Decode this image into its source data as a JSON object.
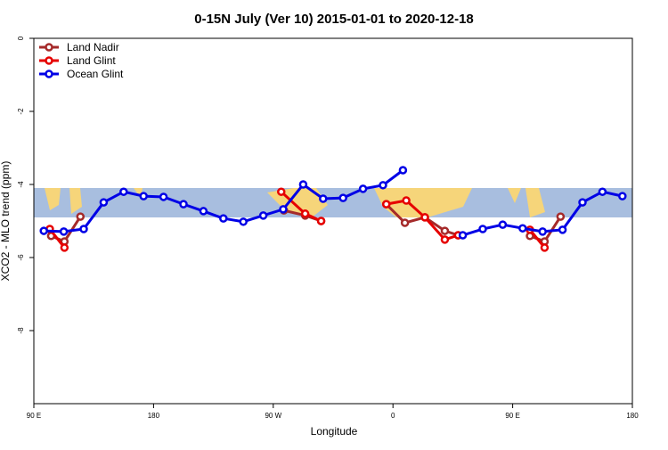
{
  "chart_data": {
    "type": "line",
    "title": "0-15N July (Ver 10)   2015-01-01 to 2020-12-18",
    "xlabel": "Longitude",
    "ylabel": "XCO2 - MLO trend (ppm)",
    "xlim": [
      90,
      540
    ],
    "ylim": [
      -10,
      0
    ],
    "xticks": [
      {
        "value": 90,
        "label": "90 E"
      },
      180,
      {
        "value": 270,
        "label": "90 W"
      },
      {
        "value": 360,
        "label": "0"
      },
      {
        "value": 450,
        "label": "90 E"
      },
      {
        "value": 540,
        "label": "180"
      }
    ],
    "yticks": [
      0,
      -2,
      -4,
      -6,
      -8
    ],
    "legend": "top-left",
    "series": [
      {
        "name": "Land Nadir",
        "color": "#a52a2a",
        "x": [
          103,
          113,
          125,
          null,
          278,
          294,
          306,
          null,
          355,
          369,
          384,
          399,
          409,
          null,
          463,
          474,
          486
        ],
        "values": [
          -5.41,
          -5.56,
          -4.88,
          null,
          -4.71,
          -4.85,
          -5.0,
          null,
          -4.54,
          -5.05,
          -4.9,
          -5.27,
          -5.39,
          null,
          -5.41,
          -5.56,
          -4.88
        ]
      },
      {
        "name": "Land Glint",
        "color": "#e60000",
        "x": [
          102,
          113,
          null,
          276,
          294,
          306,
          null,
          355,
          370,
          384,
          399,
          409,
          null,
          463,
          474
        ],
        "values": [
          -5.22,
          -5.73,
          null,
          -4.2,
          -4.8,
          -5.0,
          null,
          -4.54,
          -4.44,
          -4.9,
          -5.51,
          -5.39,
          null,
          -5.24,
          -5.73
        ]
      },
      {
        "name": "Ocean Glint",
        "color": "#0000e6",
        "x": [
          97.5,
          112.5,
          127.5,
          142.5,
          157.5,
          172.5,
          187.5,
          202.5,
          217.5,
          232.5,
          247.5,
          262.5,
          277.5,
          292.5,
          307.5,
          322.5,
          337.5,
          352.5,
          367.5,
          null,
          412.5,
          427.5,
          442.5,
          457.5,
          472.5,
          487.5,
          502.5,
          517.5,
          532.5
        ],
        "values": [
          -5.27,
          -5.29,
          -5.22,
          -4.49,
          -4.2,
          -4.32,
          -4.34,
          -4.54,
          -4.73,
          -4.93,
          -5.02,
          -4.85,
          -4.68,
          -4.0,
          -4.39,
          -4.37,
          -4.12,
          -4.02,
          -3.61,
          null,
          -5.39,
          -5.22,
          -5.1,
          -5.2,
          -5.29,
          -5.24,
          -4.49,
          -4.2,
          -4.32
        ]
      }
    ]
  }
}
